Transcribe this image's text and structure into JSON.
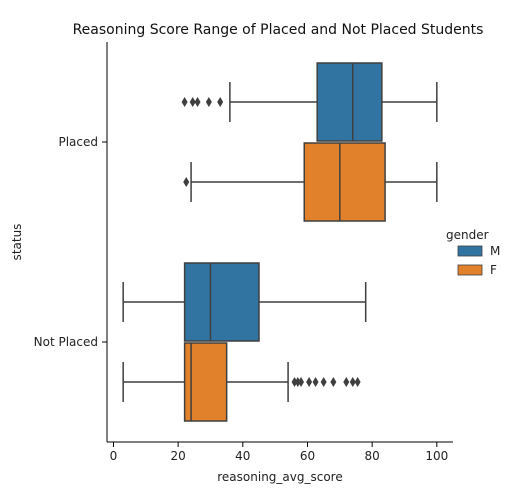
{
  "chart_data": {
    "type": "boxplot",
    "orientation": "horizontal",
    "title": "Reasoning Score Range of Placed and Not Placed Students",
    "xlabel": "reasoning_avg_score",
    "ylabel": "status",
    "xlim": [
      -2,
      105
    ],
    "x_ticks": [
      0,
      20,
      40,
      60,
      80,
      100
    ],
    "categories": [
      "Placed",
      "Not Placed"
    ],
    "legend": {
      "title": "gender",
      "position": "center-right",
      "entries": [
        "M",
        "F"
      ]
    },
    "series": [
      {
        "name": "M",
        "color": "#3274a1",
        "boxes": [
          {
            "category": "Placed",
            "whisker_low": 36,
            "q1": 63,
            "median": 74,
            "q3": 83,
            "whisker_high": 100,
            "outliers": [
              22,
              24.5,
              26,
              29.5,
              33
            ]
          },
          {
            "category": "Not Placed",
            "whisker_low": 3,
            "q1": 22,
            "median": 30,
            "q3": 45,
            "whisker_high": 78,
            "outliers": []
          }
        ]
      },
      {
        "name": "F",
        "color": "#e1812c",
        "boxes": [
          {
            "category": "Placed",
            "whisker_low": 24,
            "q1": 59,
            "median": 70,
            "q3": 84,
            "whisker_high": 100,
            "outliers": [
              22.5
            ]
          },
          {
            "category": "Not Placed",
            "whisker_low": 3,
            "q1": 22,
            "median": 24,
            "q3": 35,
            "whisker_high": 54,
            "outliers": [
              56,
              57,
              58,
              60.5,
              62.5,
              65,
              68,
              72,
              74,
              75.5
            ]
          }
        ]
      }
    ]
  }
}
